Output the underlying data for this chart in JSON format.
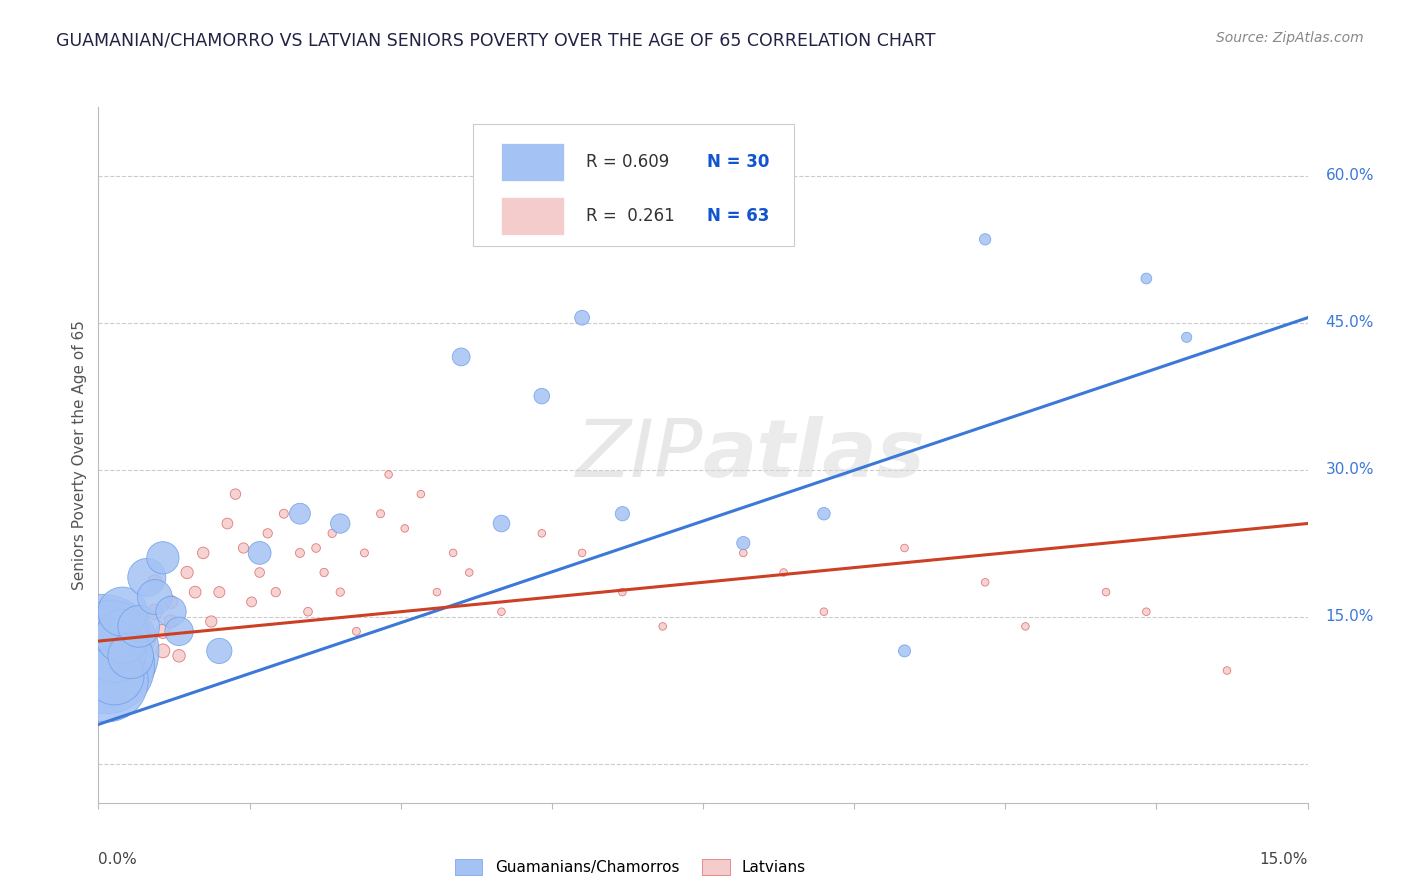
{
  "title": "GUAMANIAN/CHAMORRO VS LATVIAN SENIORS POVERTY OVER THE AGE OF 65 CORRELATION CHART",
  "source": "Source: ZipAtlas.com",
  "ylabel": "Seniors Poverty Over the Age of 65",
  "right_yticks": [
    0.0,
    0.15,
    0.3,
    0.45,
    0.6
  ],
  "right_yticklabels": [
    "",
    "15.0%",
    "30.0%",
    "45.0%",
    "60.0%"
  ],
  "xlim": [
    0.0,
    0.15
  ],
  "ylim": [
    -0.04,
    0.67
  ],
  "blue_R": "0.609",
  "blue_N": "30",
  "pink_R": "0.261",
  "pink_N": "63",
  "blue_color": "#A4C2F4",
  "pink_color": "#F4CCCC",
  "blue_edge_color": "#6D9EEB",
  "pink_edge_color": "#E06666",
  "blue_line_color": "#3C78D8",
  "pink_line_color": "#CC4125",
  "watermark_color": "#CCCCCC",
  "legend_blue_label": "Guamanians/Chamorros",
  "legend_pink_label": "Latvians",
  "blue_trend_x": [
    0.0,
    0.15
  ],
  "blue_trend_y": [
    0.04,
    0.455
  ],
  "pink_trend_x": [
    0.0,
    0.15
  ],
  "pink_trend_y": [
    0.125,
    0.245
  ],
  "blue_scatter_x": [
    0.0005,
    0.001,
    0.001,
    0.0015,
    0.002,
    0.002,
    0.003,
    0.003,
    0.004,
    0.005,
    0.006,
    0.007,
    0.008,
    0.009,
    0.01,
    0.015,
    0.02,
    0.025,
    0.03,
    0.045,
    0.05,
    0.055,
    0.06,
    0.065,
    0.08,
    0.09,
    0.1,
    0.11,
    0.13,
    0.135
  ],
  "blue_scatter_y": [
    0.115,
    0.1,
    0.085,
    0.13,
    0.115,
    0.09,
    0.13,
    0.155,
    0.11,
    0.14,
    0.19,
    0.17,
    0.21,
    0.155,
    0.135,
    0.115,
    0.215,
    0.255,
    0.245,
    0.415,
    0.245,
    0.375,
    0.455,
    0.255,
    0.225,
    0.255,
    0.115,
    0.535,
    0.495,
    0.435
  ],
  "blue_scatter_size": [
    2200,
    1600,
    1200,
    900,
    700,
    600,
    500,
    420,
    360,
    300,
    250,
    210,
    180,
    160,
    140,
    110,
    90,
    75,
    65,
    55,
    48,
    42,
    38,
    35,
    30,
    27,
    25,
    22,
    20,
    18
  ],
  "pink_scatter_x": [
    0.0003,
    0.0006,
    0.001,
    0.0015,
    0.002,
    0.0025,
    0.003,
    0.003,
    0.004,
    0.004,
    0.005,
    0.005,
    0.006,
    0.006,
    0.007,
    0.007,
    0.008,
    0.008,
    0.009,
    0.009,
    0.01,
    0.011,
    0.012,
    0.013,
    0.014,
    0.015,
    0.016,
    0.017,
    0.018,
    0.019,
    0.02,
    0.021,
    0.022,
    0.023,
    0.025,
    0.026,
    0.027,
    0.028,
    0.029,
    0.03,
    0.032,
    0.033,
    0.035,
    0.036,
    0.038,
    0.04,
    0.042,
    0.044,
    0.046,
    0.05,
    0.055,
    0.06,
    0.065,
    0.07,
    0.08,
    0.085,
    0.09,
    0.1,
    0.11,
    0.115,
    0.125,
    0.13,
    0.14
  ],
  "pink_scatter_y": [
    0.125,
    0.105,
    0.095,
    0.115,
    0.125,
    0.09,
    0.11,
    0.155,
    0.125,
    0.105,
    0.115,
    0.145,
    0.125,
    0.095,
    0.155,
    0.185,
    0.135,
    0.115,
    0.145,
    0.165,
    0.11,
    0.195,
    0.175,
    0.215,
    0.145,
    0.175,
    0.245,
    0.275,
    0.22,
    0.165,
    0.195,
    0.235,
    0.175,
    0.255,
    0.215,
    0.155,
    0.22,
    0.195,
    0.235,
    0.175,
    0.135,
    0.215,
    0.255,
    0.295,
    0.24,
    0.275,
    0.175,
    0.215,
    0.195,
    0.155,
    0.235,
    0.215,
    0.175,
    0.14,
    0.215,
    0.195,
    0.155,
    0.22,
    0.185,
    0.14,
    0.175,
    0.155,
    0.095
  ],
  "pink_scatter_size": [
    220,
    180,
    150,
    130,
    110,
    95,
    85,
    75,
    68,
    62,
    57,
    52,
    48,
    44,
    41,
    38,
    35,
    33,
    31,
    29,
    27,
    26,
    24,
    23,
    22,
    21,
    20,
    19,
    18,
    17,
    16,
    15,
    15,
    14,
    14,
    13,
    13,
    12,
    12,
    12,
    11,
    11,
    11,
    10,
    10,
    10,
    10,
    10,
    10,
    10,
    10,
    10,
    10,
    10,
    10,
    10,
    10,
    10,
    10,
    10,
    10,
    10,
    10
  ]
}
